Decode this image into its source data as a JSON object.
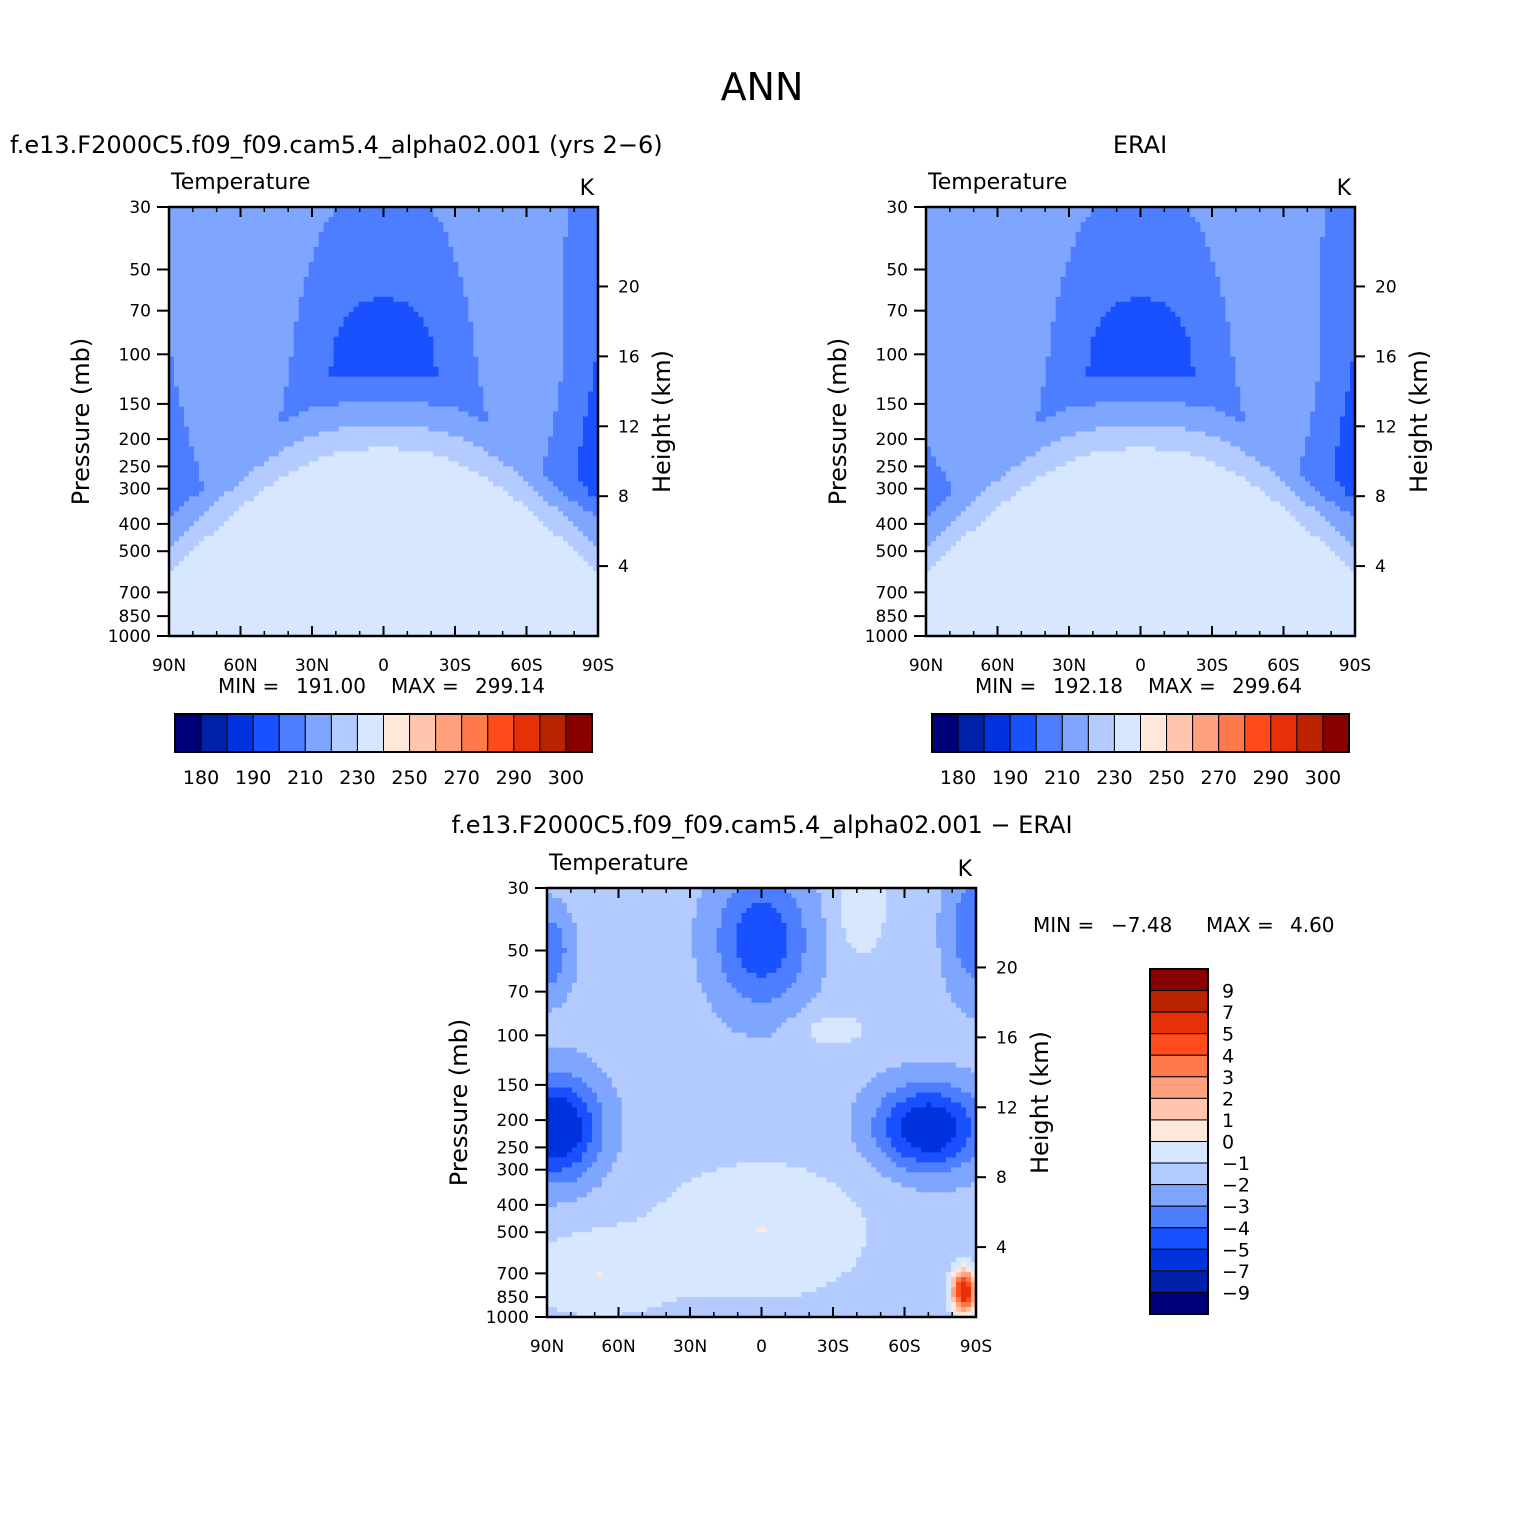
{
  "title": "ANN",
  "panels": [
    {
      "id": "model",
      "header": "f.e13.F2000C5.f09_f09.cam5.4_alpha02.001 (yrs 2−6)",
      "variable": "Temperature",
      "units": "K",
      "stats": {
        "min_label": "MIN =",
        "min_value": "191.00",
        "max_label": "MAX =",
        "max_value": "299.14"
      }
    },
    {
      "id": "obs",
      "header": "ERAI",
      "variable": "Temperature",
      "units": "K",
      "stats": {
        "min_label": "MIN =",
        "min_value": "192.18",
        "max_label": "MAX =",
        "max_value": "299.64"
      }
    },
    {
      "id": "diff",
      "header": "f.e13.F2000C5.f09_f09.cam5.4_alpha02.001 − ERAI",
      "variable": "Temperature",
      "units": "K",
      "stats": {
        "min_label": "MIN =",
        "min_value": "−7.48",
        "max_label": "MAX =",
        "max_value": "4.60"
      }
    }
  ],
  "axes": {
    "xlabel": "",
    "ylabel_left": "Pressure (mb)",
    "ylabel_right": "Height (km)",
    "x_ticks": [
      "90N",
      "60N",
      "30N",
      "0",
      "30S",
      "60S",
      "90S"
    ],
    "pressure_ticks": [
      "30",
      "50",
      "70",
      "100",
      "150",
      "200",
      "250",
      "300",
      "400",
      "500",
      "700",
      "850",
      "1000"
    ],
    "height_ticks": [
      "20",
      "16",
      "12",
      "8",
      "4"
    ]
  },
  "colorbars": {
    "temperature": {
      "orientation": "horizontal",
      "colors": [
        "#00007a",
        "#0022aa",
        "#0033dd",
        "#1950ff",
        "#4c7eff",
        "#7fa6ff",
        "#b3cbff",
        "#d7e7ff",
        "#ffe8d9",
        "#ffc6ad",
        "#ffa17e",
        "#ff7a4b",
        "#ff4c1a",
        "#e5300a",
        "#bb2200",
        "#880000"
      ],
      "labels": [
        "180",
        "190",
        "210",
        "230",
        "250",
        "270",
        "290",
        "300"
      ]
    },
    "difference": {
      "orientation": "vertical",
      "colors": [
        "#00007a",
        "#0022aa",
        "#0033dd",
        "#1950ff",
        "#4c7eff",
        "#7fa6ff",
        "#b3cbff",
        "#d7e7ff",
        "#ffe8d9",
        "#ffc6ad",
        "#ffa17e",
        "#ff7a4b",
        "#ff4c1a",
        "#e5300a",
        "#bb2200",
        "#880000"
      ],
      "labels": [
        "9",
        "7",
        "5",
        "4",
        "3",
        "2",
        "1",
        "0",
        "−1",
        "−2",
        "−3",
        "−4",
        "−5",
        "−7",
        "−9"
      ]
    }
  },
  "chart_data": [
    {
      "type": "heatmap",
      "title": "Temperature",
      "panel": "f.e13.F2000C5.f09_f09.cam5.4_alpha02.001 (yrs 2−6)",
      "units": "K",
      "x": [
        "90N",
        "60N",
        "30N",
        "0",
        "30S",
        "60S",
        "90S"
      ],
      "y": [
        30,
        50,
        70,
        100,
        150,
        200,
        250,
        300,
        400,
        500,
        700,
        850,
        1000
      ],
      "ylabel": "Pressure (mb)",
      "y_scale": "log",
      "secondary_ylabel": "Height (km)",
      "contour_levels": [
        180,
        185,
        190,
        200,
        210,
        220,
        230,
        240,
        250,
        260,
        270,
        280,
        290,
        295,
        300
      ],
      "min": 191.0,
      "max": 299.14
    },
    {
      "type": "heatmap",
      "title": "Temperature",
      "panel": "ERAI",
      "units": "K",
      "x": [
        "90N",
        "60N",
        "30N",
        "0",
        "30S",
        "60S",
        "90S"
      ],
      "y": [
        30,
        50,
        70,
        100,
        150,
        200,
        250,
        300,
        400,
        500,
        700,
        850,
        1000
      ],
      "ylabel": "Pressure (mb)",
      "y_scale": "log",
      "secondary_ylabel": "Height (km)",
      "contour_levels": [
        180,
        185,
        190,
        200,
        210,
        220,
        230,
        240,
        250,
        260,
        270,
        280,
        290,
        295,
        300
      ],
      "min": 192.18,
      "max": 299.64
    },
    {
      "type": "heatmap",
      "title": "Temperature",
      "panel": "f.e13.F2000C5.f09_f09.cam5.4_alpha02.001 − ERAI",
      "units": "K",
      "x": [
        "90N",
        "60N",
        "30N",
        "0",
        "30S",
        "60S",
        "90S"
      ],
      "y": [
        30,
        50,
        70,
        100,
        150,
        200,
        250,
        300,
        400,
        500,
        700,
        850,
        1000
      ],
      "ylabel": "Pressure (mb)",
      "y_scale": "log",
      "secondary_ylabel": "Height (km)",
      "contour_levels": [
        -9,
        -7,
        -5,
        -4,
        -3,
        -2,
        -1,
        0,
        1,
        2,
        3,
        4,
        5,
        7,
        9
      ],
      "min": -7.48,
      "max": 4.6
    }
  ]
}
